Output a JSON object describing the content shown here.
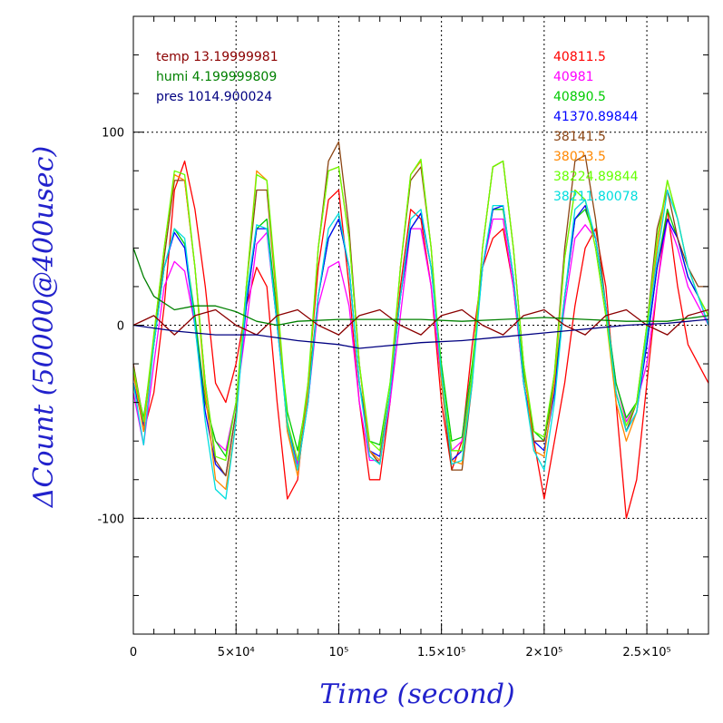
{
  "chart_data": {
    "type": "line",
    "xlabel": "Time (second)",
    "ylabel": "ΔCount (50000@400usec)",
    "xlim": [
      0,
      280000
    ],
    "ylim": [
      -160,
      160
    ],
    "grid": true,
    "x_ticks": [
      {
        "value": 0,
        "label": "0"
      },
      {
        "value": 50000,
        "label": "5×10⁴"
      },
      {
        "value": 100000,
        "label": "10⁵"
      },
      {
        "value": 150000,
        "label": "1.5×10⁵"
      },
      {
        "value": 200000,
        "label": "2×10⁵"
      },
      {
        "value": 250000,
        "label": "2.5×10⁵"
      }
    ],
    "y_ticks": [
      {
        "value": 100,
        "label": "100"
      },
      {
        "value": 0,
        "label": "0"
      },
      {
        "value": -100,
        "label": "-100"
      }
    ],
    "legend_left": [
      {
        "label": "temp 13.19999981",
        "color": "#8b0000"
      },
      {
        "label": "humi 4.199999809",
        "color": "#008000"
      },
      {
        "label": "pres 1014.900024",
        "color": "#000080"
      }
    ],
    "legend_right": [
      {
        "label": "40811.5",
        "color": "#ff0000"
      },
      {
        "label": "40981",
        "color": "#ff00ff"
      },
      {
        "label": "40890.5",
        "color": "#00cc00"
      },
      {
        "label": "41370.89844",
        "color": "#0000ff"
      },
      {
        "label": "38141.5",
        "color": "#8b4513"
      },
      {
        "label": "38023.5",
        "color": "#ff8800"
      },
      {
        "label": "38224.89844",
        "color": "#66ff00"
      },
      {
        "label": "38211.80078",
        "color": "#00dddd"
      }
    ],
    "series": [
      {
        "name": "40811.5",
        "color": "#ff0000",
        "x": [
          0,
          5000,
          10000,
          15000,
          20000,
          25000,
          30000,
          35000,
          40000,
          45000,
          50000,
          55000,
          60000,
          65000,
          70000,
          75000,
          80000,
          85000,
          90000,
          95000,
          100000,
          105000,
          110000,
          115000,
          120000,
          125000,
          130000,
          135000,
          140000,
          145000,
          150000,
          155000,
          160000,
          165000,
          170000,
          175000,
          180000,
          185000,
          190000,
          195000,
          200000,
          205000,
          210000,
          215000,
          220000,
          225000,
          230000,
          235000,
          240000,
          245000,
          250000,
          255000,
          260000,
          265000,
          270000,
          275000,
          280000
        ],
        "y": [
          -20,
          -55,
          -35,
          10,
          70,
          85,
          60,
          20,
          -30,
          -40,
          -20,
          10,
          30,
          20,
          -40,
          -90,
          -80,
          -30,
          30,
          65,
          70,
          20,
          -40,
          -80,
          -80,
          -40,
          20,
          60,
          55,
          20,
          -40,
          -75,
          -60,
          -10,
          30,
          45,
          50,
          20,
          -30,
          -60,
          -90,
          -60,
          -30,
          10,
          40,
          50,
          20,
          -40,
          -100,
          -80,
          -30,
          20,
          60,
          20,
          -10,
          -20,
          -30
        ]
      },
      {
        "name": "40981",
        "color": "#ff00ff",
        "x": [
          0,
          5000,
          10000,
          15000,
          20000,
          25000,
          30000,
          35000,
          40000,
          45000,
          50000,
          55000,
          60000,
          65000,
          70000,
          75000,
          80000,
          85000,
          90000,
          95000,
          100000,
          105000,
          110000,
          115000,
          120000,
          125000,
          130000,
          135000,
          140000,
          145000,
          150000,
          155000,
          160000,
          165000,
          170000,
          175000,
          180000,
          185000,
          190000,
          195000,
          200000,
          205000,
          210000,
          215000,
          220000,
          225000,
          230000,
          235000,
          240000,
          245000,
          250000,
          255000,
          260000,
          265000,
          270000,
          275000,
          280000
        ],
        "y": [
          -35,
          -62,
          -20,
          20,
          33,
          28,
          0,
          -40,
          -60,
          -65,
          -40,
          0,
          42,
          48,
          0,
          -50,
          -72,
          -40,
          10,
          30,
          33,
          10,
          -40,
          -70,
          -70,
          -40,
          5,
          50,
          50,
          20,
          -30,
          -65,
          -60,
          -25,
          30,
          55,
          55,
          20,
          -30,
          -60,
          -60,
          -30,
          10,
          45,
          52,
          45,
          10,
          -30,
          -50,
          -40,
          -20,
          20,
          55,
          40,
          20,
          10,
          0
        ]
      },
      {
        "name": "40890.5",
        "color": "#00cc00",
        "x": [
          0,
          5000,
          10000,
          15000,
          20000,
          25000,
          30000,
          35000,
          40000,
          45000,
          50000,
          55000,
          60000,
          65000,
          70000,
          75000,
          80000,
          85000,
          90000,
          95000,
          100000,
          105000,
          110000,
          115000,
          120000,
          125000,
          130000,
          135000,
          140000,
          145000,
          150000,
          155000,
          160000,
          165000,
          170000,
          175000,
          180000,
          185000,
          190000,
          195000,
          200000,
          205000,
          210000,
          215000,
          220000,
          225000,
          230000,
          235000,
          240000,
          245000,
          250000,
          255000,
          260000,
          265000,
          270000,
          275000,
          280000
        ],
        "y": [
          -25,
          -48,
          -10,
          30,
          50,
          42,
          5,
          -40,
          -60,
          -68,
          -40,
          10,
          50,
          55,
          5,
          -45,
          -65,
          -35,
          15,
          45,
          55,
          30,
          -30,
          -60,
          -62,
          -30,
          15,
          50,
          58,
          30,
          -20,
          -60,
          -58,
          -20,
          30,
          60,
          60,
          25,
          -25,
          -55,
          -60,
          -30,
          15,
          55,
          60,
          45,
          10,
          -30,
          -48,
          -40,
          -10,
          30,
          60,
          45,
          25,
          15,
          5
        ]
      },
      {
        "name": "41370.89844",
        "color": "#0000ff",
        "x": [
          0,
          5000,
          10000,
          15000,
          20000,
          25000,
          30000,
          35000,
          40000,
          45000,
          50000,
          55000,
          60000,
          65000,
          70000,
          75000,
          80000,
          85000,
          90000,
          95000,
          100000,
          105000,
          110000,
          115000,
          120000,
          125000,
          130000,
          135000,
          140000,
          145000,
          150000,
          155000,
          160000,
          165000,
          170000,
          175000,
          180000,
          185000,
          190000,
          195000,
          200000,
          205000,
          210000,
          215000,
          220000,
          225000,
          230000,
          235000,
          240000,
          245000,
          250000,
          255000,
          260000,
          265000,
          270000,
          275000,
          280000
        ],
        "y": [
          -30,
          -52,
          -10,
          30,
          48,
          40,
          0,
          -45,
          -72,
          -78,
          -45,
          10,
          50,
          50,
          0,
          -50,
          -75,
          -40,
          15,
          45,
          55,
          30,
          -30,
          -65,
          -68,
          -35,
          15,
          50,
          58,
          30,
          -25,
          -70,
          -65,
          -25,
          30,
          60,
          62,
          25,
          -30,
          -60,
          -65,
          -35,
          15,
          55,
          62,
          45,
          10,
          -35,
          -55,
          -45,
          -10,
          30,
          55,
          45,
          25,
          15,
          0
        ]
      },
      {
        "name": "38141.5",
        "color": "#8b4513",
        "x": [
          0,
          5000,
          10000,
          15000,
          20000,
          25000,
          30000,
          35000,
          40000,
          45000,
          50000,
          55000,
          60000,
          65000,
          70000,
          75000,
          80000,
          85000,
          90000,
          95000,
          100000,
          105000,
          110000,
          115000,
          120000,
          125000,
          130000,
          135000,
          140000,
          145000,
          150000,
          155000,
          160000,
          165000,
          170000,
          175000,
          180000,
          185000,
          190000,
          195000,
          200000,
          205000,
          210000,
          215000,
          220000,
          225000,
          230000,
          235000,
          240000,
          245000,
          250000,
          255000,
          260000,
          265000,
          270000,
          275000,
          280000
        ],
        "y": [
          -20,
          -50,
          -10,
          35,
          75,
          75,
          30,
          -30,
          -70,
          -78,
          -45,
          20,
          70,
          70,
          10,
          -55,
          -75,
          -35,
          40,
          85,
          95,
          50,
          -20,
          -65,
          -72,
          -35,
          30,
          75,
          82,
          40,
          -30,
          -75,
          -75,
          -30,
          40,
          82,
          85,
          40,
          -20,
          -60,
          -60,
          -25,
          40,
          85,
          88,
          55,
          10,
          -35,
          -55,
          -40,
          0,
          50,
          70,
          45,
          30,
          20,
          20
        ]
      },
      {
        "name": "38023.5",
        "color": "#ff8800",
        "x": [
          0,
          5000,
          10000,
          15000,
          20000,
          25000,
          30000,
          35000,
          40000,
          45000,
          50000,
          55000,
          60000,
          65000,
          70000,
          75000,
          80000,
          85000,
          90000,
          95000,
          100000,
          105000,
          110000,
          115000,
          120000,
          125000,
          130000,
          135000,
          140000,
          145000,
          150000,
          155000,
          160000,
          165000,
          170000,
          175000,
          180000,
          185000,
          190000,
          195000,
          200000,
          205000,
          210000,
          215000,
          220000,
          225000,
          230000,
          235000,
          240000,
          245000,
          250000,
          255000,
          260000,
          265000,
          270000,
          275000,
          280000
        ],
        "y": [
          -25,
          -55,
          -5,
          40,
          78,
          75,
          30,
          -35,
          -80,
          -85,
          -50,
          20,
          80,
          75,
          10,
          -55,
          -78,
          -35,
          40,
          80,
          82,
          45,
          -20,
          -65,
          -70,
          -35,
          30,
          78,
          85,
          40,
          -30,
          -70,
          -72,
          -25,
          40,
          82,
          85,
          40,
          -20,
          -65,
          -68,
          -30,
          35,
          70,
          65,
          40,
          5,
          -40,
          -60,
          -45,
          -5,
          40,
          75,
          55,
          30,
          15,
          5
        ]
      },
      {
        "name": "38224.89844",
        "color": "#66ff00",
        "x": [
          0,
          5000,
          10000,
          15000,
          20000,
          25000,
          30000,
          35000,
          40000,
          45000,
          50000,
          55000,
          60000,
          65000,
          70000,
          75000,
          80000,
          85000,
          90000,
          95000,
          100000,
          105000,
          110000,
          115000,
          120000,
          125000,
          130000,
          135000,
          140000,
          145000,
          150000,
          155000,
          160000,
          165000,
          170000,
          175000,
          180000,
          185000,
          190000,
          195000,
          200000,
          205000,
          210000,
          215000,
          220000,
          225000,
          230000,
          235000,
          240000,
          245000,
          250000,
          255000,
          260000,
          265000,
          270000,
          275000,
          280000
        ],
        "y": [
          -22,
          -50,
          -5,
          40,
          80,
          78,
          30,
          -30,
          -68,
          -70,
          -40,
          20,
          78,
          75,
          15,
          -50,
          -70,
          -30,
          40,
          80,
          82,
          45,
          -20,
          -60,
          -65,
          -30,
          30,
          78,
          86,
          40,
          -25,
          -65,
          -65,
          -25,
          40,
          82,
          85,
          40,
          -20,
          -55,
          -58,
          -25,
          35,
          70,
          65,
          40,
          5,
          -35,
          -52,
          -40,
          0,
          45,
          75,
          55,
          30,
          15,
          5
        ]
      },
      {
        "name": "38211.80078",
        "color": "#00dddd",
        "x": [
          0,
          5000,
          10000,
          15000,
          20000,
          25000,
          30000,
          35000,
          40000,
          45000,
          50000,
          55000,
          60000,
          65000,
          70000,
          75000,
          80000,
          85000,
          90000,
          95000,
          100000,
          105000,
          110000,
          115000,
          120000,
          125000,
          130000,
          135000,
          140000,
          145000,
          150000,
          155000,
          160000,
          165000,
          170000,
          175000,
          180000,
          185000,
          190000,
          195000,
          200000,
          205000,
          210000,
          215000,
          220000,
          225000,
          230000,
          235000,
          240000,
          245000,
          250000,
          255000,
          260000,
          265000,
          270000,
          275000,
          280000
        ],
        "y": [
          -30,
          -62,
          -10,
          30,
          50,
          45,
          0,
          -50,
          -85,
          -90,
          -50,
          15,
          52,
          50,
          0,
          -52,
          -75,
          -40,
          15,
          50,
          58,
          30,
          -30,
          -68,
          -72,
          -35,
          15,
          55,
          60,
          30,
          -25,
          -72,
          -70,
          -30,
          30,
          62,
          62,
          25,
          -30,
          -65,
          -75,
          -40,
          15,
          60,
          65,
          45,
          10,
          -35,
          -55,
          -45,
          -5,
          35,
          70,
          55,
          30,
          15,
          0
        ]
      },
      {
        "name": "temp",
        "color": "#8b0000",
        "x": [
          0,
          10000,
          20000,
          30000,
          40000,
          50000,
          60000,
          70000,
          80000,
          90000,
          100000,
          110000,
          120000,
          130000,
          140000,
          150000,
          160000,
          170000,
          180000,
          190000,
          200000,
          210000,
          220000,
          230000,
          240000,
          250000,
          260000,
          270000,
          280000
        ],
        "y": [
          0,
          5,
          -5,
          5,
          8,
          0,
          -5,
          5,
          8,
          0,
          -5,
          5,
          8,
          0,
          -5,
          5,
          8,
          0,
          -5,
          5,
          8,
          0,
          -5,
          5,
          8,
          0,
          -5,
          5,
          8
        ]
      },
      {
        "name": "humi",
        "color": "#008000",
        "x": [
          0,
          5000,
          10000,
          20000,
          30000,
          40000,
          50000,
          60000,
          70000,
          80000,
          100000,
          120000,
          140000,
          160000,
          180000,
          200000,
          220000,
          240000,
          260000,
          280000
        ],
        "y": [
          40,
          25,
          15,
          8,
          10,
          10,
          7,
          2,
          0,
          2,
          3,
          3,
          3,
          2,
          3,
          4,
          3,
          2,
          2,
          5
        ]
      },
      {
        "name": "pres",
        "color": "#000080",
        "x": [
          0,
          20000,
          40000,
          60000,
          80000,
          100000,
          110000,
          120000,
          140000,
          160000,
          180000,
          200000,
          220000,
          240000,
          260000,
          280000
        ],
        "y": [
          0,
          -3,
          -5,
          -5,
          -8,
          -10,
          -12,
          -11,
          -9,
          -8,
          -6,
          -4,
          -2,
          0,
          1,
          3
        ]
      }
    ]
  }
}
